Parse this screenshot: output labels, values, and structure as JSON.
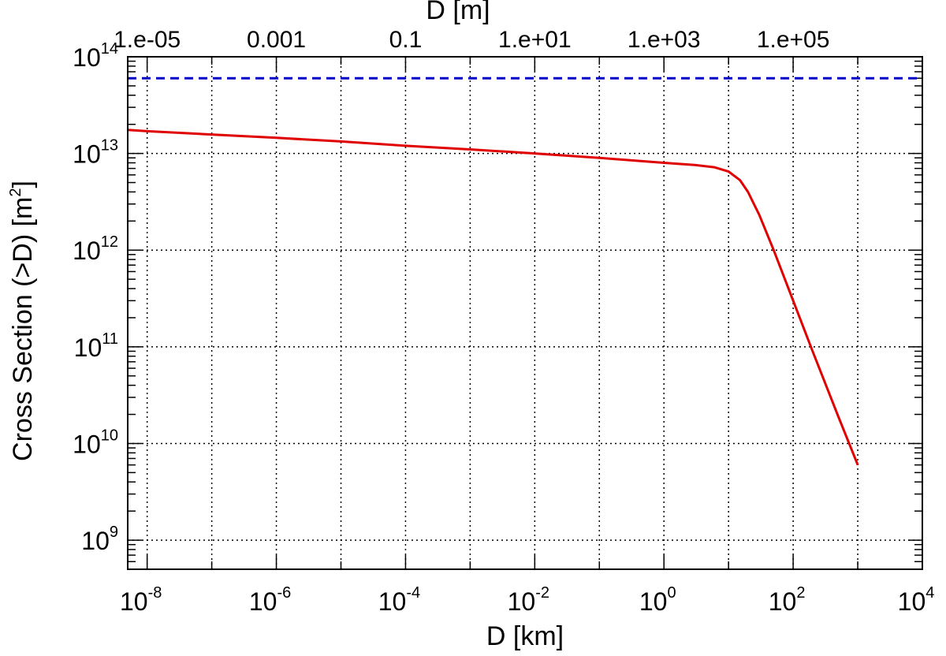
{
  "chart_data": {
    "type": "line",
    "xscale": "log",
    "yscale": "log",
    "xlabel": "D [km]",
    "x2label": "D [m]",
    "ylabel": "Cross Section (>D) [m",
    "ylabel_sup": "2",
    "ylabel_close": "]",
    "xlim": [
      5e-09,
      10000
    ],
    "ylim": [
      500000000.0,
      100000000000000.0
    ],
    "grid": true,
    "x_ticks": [
      {
        "value": 1e-08,
        "base": "10",
        "exp": "-8"
      },
      {
        "value": 1e-06,
        "base": "10",
        "exp": "-6"
      },
      {
        "value": 0.0001,
        "base": "10",
        "exp": "-4"
      },
      {
        "value": 0.01,
        "base": "10",
        "exp": "-2"
      },
      {
        "value": 1,
        "base": "10",
        "exp": "0"
      },
      {
        "value": 100,
        "base": "10",
        "exp": "2"
      },
      {
        "value": 10000,
        "base": "10",
        "exp": "4"
      }
    ],
    "x2_ticks": [
      {
        "value_m": 1e-05,
        "label": "1.e-05"
      },
      {
        "value_m": 0.001,
        "label": "0.001"
      },
      {
        "value_m": 0.1,
        "label": "0.1"
      },
      {
        "value_m": 10,
        "label": "1.e+01"
      },
      {
        "value_m": 1000,
        "label": "1.e+03"
      },
      {
        "value_m": 100000,
        "label": "1.e+05"
      }
    ],
    "y_ticks": [
      {
        "value": 1000000000.0,
        "base": "10",
        "exp": "9"
      },
      {
        "value": 10000000000.0,
        "base": "10",
        "exp": "10"
      },
      {
        "value": 100000000000.0,
        "base": "10",
        "exp": "11"
      },
      {
        "value": 1000000000000.0,
        "base": "10",
        "exp": "12"
      },
      {
        "value": 10000000000000.0,
        "base": "10",
        "exp": "13"
      },
      {
        "value": 100000000000000.0,
        "base": "10",
        "exp": "14"
      }
    ],
    "series": [
      {
        "style": "solid",
        "color": "#e00000",
        "x": [
          5e-09,
          1e-08,
          1e-07,
          1e-06,
          1e-05,
          0.0001,
          0.001,
          0.01,
          0.1,
          1,
          3,
          6,
          10,
          15,
          20,
          30,
          50,
          100,
          200,
          500,
          1000
        ],
        "y": [
          17500000000000.0,
          17000000000000.0,
          15700000000000.0,
          14500000000000.0,
          13300000000000.0,
          12000000000000.0,
          11000000000000.0,
          10000000000000.0,
          9000000000000.0,
          8000000000000.0,
          7600000000000.0,
          7200000000000.0,
          6500000000000.0,
          5300000000000.0,
          4000000000000.0,
          2300000000000.0,
          1000000000000.0,
          300000000000.0,
          90000000000.0,
          19000000000.0,
          6000000000.0
        ]
      },
      {
        "style": "dashed",
        "color": "#0000c8",
        "x": [
          5e-09,
          10000
        ],
        "y": [
          60000000000000.0,
          60000000000000.0
        ]
      }
    ]
  }
}
